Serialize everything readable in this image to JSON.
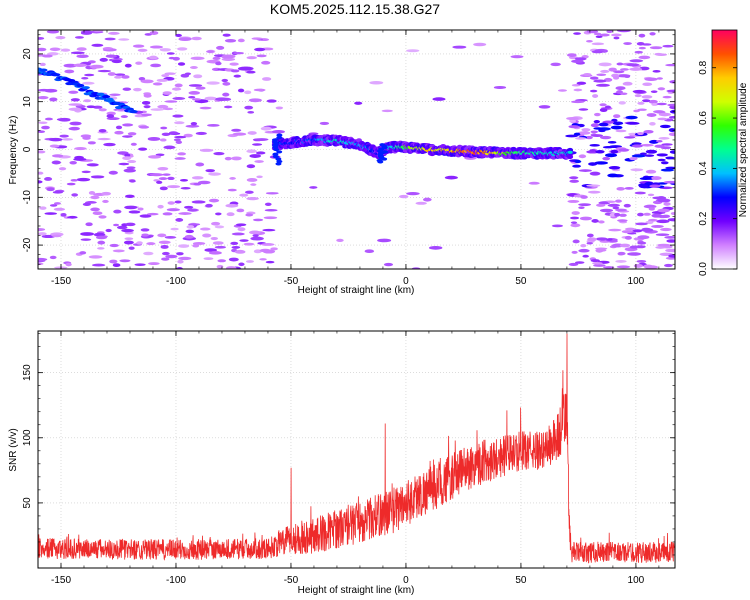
{
  "figure": {
    "title": "KOM5.2025.112.15.38.G27"
  },
  "chart_data": [
    {
      "type": "heatmap",
      "xlabel": "Height of straight line (km)",
      "ylabel": "Frequency (Hz)",
      "xlim": [
        -160,
        117
      ],
      "ylim": [
        -25,
        25
      ],
      "xticks": [
        -150,
        -100,
        -50,
        0,
        50,
        100
      ],
      "yticks": [
        -20,
        -10,
        0,
        10,
        20
      ],
      "grid": true,
      "colorbar": {
        "label": "Normalized spectral amplitude",
        "range": [
          0.0,
          0.95
        ],
        "ticks": [
          0.0,
          0.2,
          0.4,
          0.6,
          0.8
        ],
        "colormap": "rainbow",
        "colors": [
          "#ffffff",
          "#d080ff",
          "#7000ff",
          "#0000ff",
          "#00c0ff",
          "#00ff90",
          "#30ff00",
          "#d0ff00",
          "#ffcc00",
          "#ff5000",
          "#ff0060"
        ]
      },
      "features": {
        "signal_track": [
          {
            "x": -57,
            "y": 1.0,
            "amp": 0.35
          },
          {
            "x": -50,
            "y": 1.5,
            "amp": 0.3
          },
          {
            "x": -40,
            "y": 2.0,
            "amp": 0.35
          },
          {
            "x": -30,
            "y": 1.8,
            "amp": 0.45
          },
          {
            "x": -20,
            "y": 1.0,
            "amp": 0.4
          },
          {
            "x": -12,
            "y": -0.8,
            "amp": 0.3
          },
          {
            "x": -8,
            "y": 0.5,
            "amp": 0.4
          },
          {
            "x": 0,
            "y": 0.5,
            "amp": 0.6
          },
          {
            "x": 10,
            "y": 0.0,
            "amp": 0.75
          },
          {
            "x": 20,
            "y": -0.3,
            "amp": 0.8
          },
          {
            "x": 30,
            "y": -0.5,
            "amp": 0.9
          },
          {
            "x": 40,
            "y": -0.7,
            "amp": 0.7
          },
          {
            "x": 50,
            "y": -0.8,
            "amp": 0.5
          },
          {
            "x": 60,
            "y": -0.8,
            "amp": 0.45
          },
          {
            "x": 72,
            "y": -0.8,
            "amp": 0.4
          }
        ],
        "noise_floor_amp": 0.15
      }
    },
    {
      "type": "line",
      "xlabel": "Height of straight line (km)",
      "ylabel": "SNR (v/v)",
      "xlim": [
        -160,
        117
      ],
      "ylim": [
        0,
        182
      ],
      "xticks": [
        -150,
        -100,
        -50,
        0,
        50,
        100
      ],
      "yticks": [
        50,
        100,
        150
      ],
      "grid": true,
      "series": [
        {
          "color": "#ee2a2a",
          "envelope": [
            {
              "x": -160,
              "mean": 15,
              "spread": 8
            },
            {
              "x": -100,
              "mean": 14,
              "spread": 8
            },
            {
              "x": -60,
              "mean": 15,
              "spread": 8
            },
            {
              "x": -50,
              "mean": 22,
              "spread": 12
            },
            {
              "x": -40,
              "mean": 25,
              "spread": 14
            },
            {
              "x": -20,
              "mean": 35,
              "spread": 16
            },
            {
              "x": -5,
              "mean": 45,
              "spread": 18
            },
            {
              "x": 10,
              "mean": 60,
              "spread": 18
            },
            {
              "x": 30,
              "mean": 80,
              "spread": 18
            },
            {
              "x": 50,
              "mean": 90,
              "spread": 15
            },
            {
              "x": 60,
              "mean": 90,
              "spread": 15
            },
            {
              "x": 66,
              "mean": 100,
              "spread": 20
            },
            {
              "x": 70,
              "mean": 120,
              "spread": 25
            },
            {
              "x": 71,
              "mean": 30,
              "spread": 15
            },
            {
              "x": 72,
              "mean": 12,
              "spread": 8
            },
            {
              "x": 117,
              "mean": 12,
              "spread": 8
            }
          ],
          "peaks": [
            {
              "x": -50,
              "y": 77
            },
            {
              "x": -9,
              "y": 111
            },
            {
              "x": 70,
              "y": 180
            }
          ]
        }
      ]
    }
  ]
}
